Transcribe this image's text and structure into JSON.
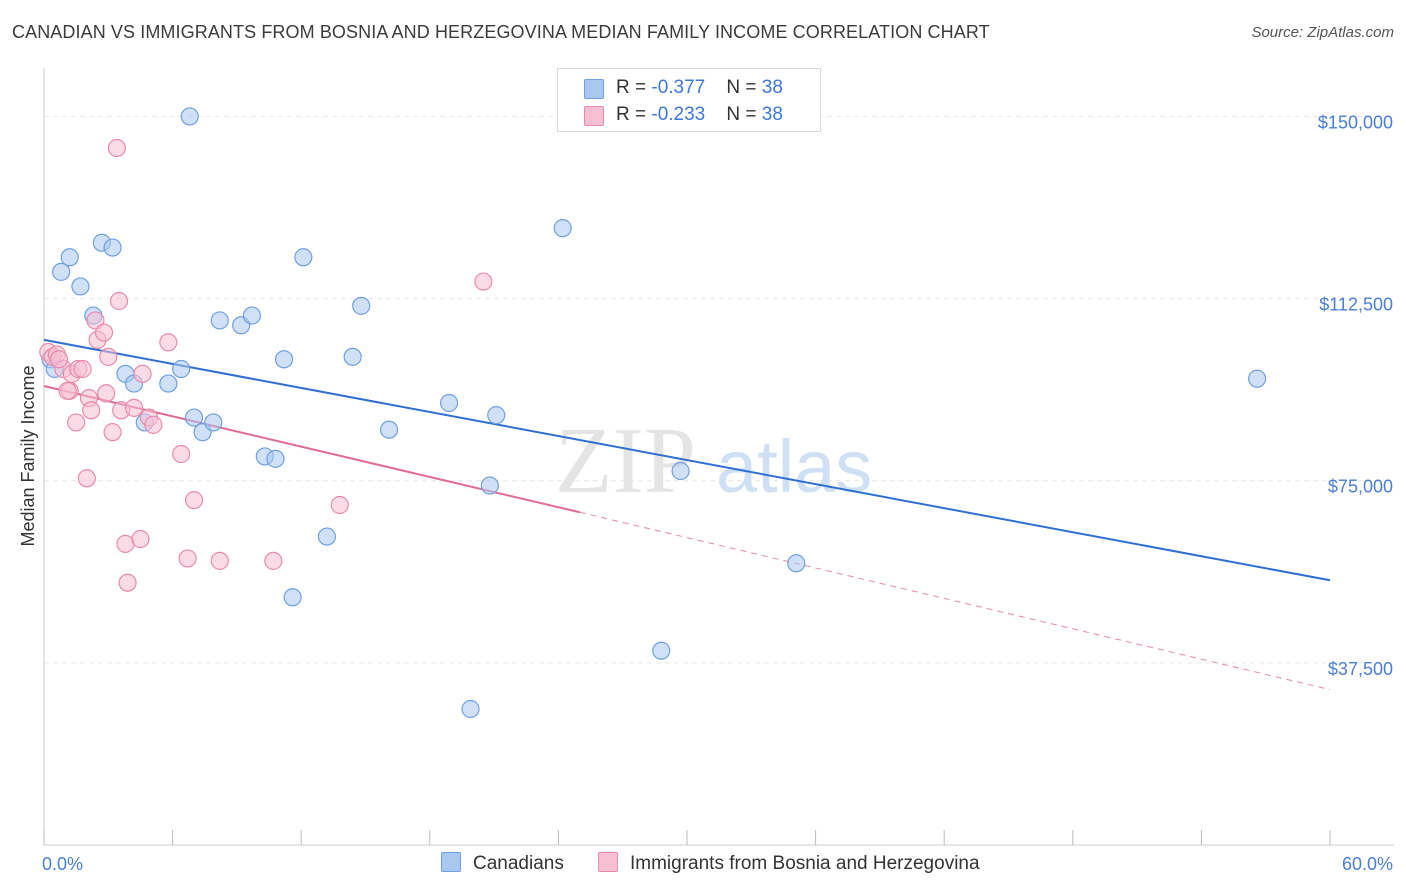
{
  "title": "CANADIAN VS IMMIGRANTS FROM BOSNIA AND HERZEGOVINA MEDIAN FAMILY INCOME CORRELATION CHART",
  "source": "Source: ZipAtlas.com",
  "watermark": {
    "zip": "ZIP",
    "atlas": "atlas"
  },
  "legend": [
    {
      "r_label": "R = ",
      "r_value": "-0.377",
      "n_label": "N = ",
      "n_value": "38",
      "color": "#a9c8f0",
      "border": "#6fa0e0"
    },
    {
      "r_label": "R = ",
      "r_value": "-0.233",
      "n_label": "N = ",
      "n_value": "38",
      "color": "#f7bfd2",
      "border": "#e98aab"
    }
  ],
  "chart_data": {
    "type": "scatter",
    "title": "CANADIAN VS IMMIGRANTS FROM BOSNIA AND HERZEGOVINA MEDIAN FAMILY INCOME CORRELATION CHART",
    "xlabel": "",
    "ylabel": "Median Family Income",
    "xlim": [
      0,
      60
    ],
    "ylim": [
      0,
      157500
    ],
    "x_tick_labels": [
      "0.0%",
      "60.0%"
    ],
    "y_ticks": [
      37500,
      75000,
      112500,
      150000
    ],
    "y_tick_labels": [
      "$37,500",
      "$75,000",
      "$112,500",
      "$150,000"
    ],
    "grid": true,
    "series": [
      {
        "name": "Canadians",
        "color": "#6fa0e0",
        "fill": "#a9c8f0",
        "line_color": "#2f6fd1",
        "trend": {
          "x0": 0.0,
          "y0": 104000,
          "x1": 60.0,
          "y1": 54500,
          "dashed_to": null
        },
        "points": [
          [
            0.3,
            100000
          ],
          [
            0.5,
            98000
          ],
          [
            0.8,
            118000
          ],
          [
            1.2,
            121000
          ],
          [
            1.7,
            115000
          ],
          [
            2.3,
            109000
          ],
          [
            2.7,
            124000
          ],
          [
            3.2,
            123000
          ],
          [
            3.8,
            97000
          ],
          [
            4.2,
            95000
          ],
          [
            4.7,
            87000
          ],
          [
            5.8,
            95000
          ],
          [
            6.4,
            98000
          ],
          [
            6.8,
            150000
          ],
          [
            7.0,
            88000
          ],
          [
            7.4,
            85000
          ],
          [
            7.9,
            87000
          ],
          [
            8.2,
            108000
          ],
          [
            9.2,
            107000
          ],
          [
            9.7,
            109000
          ],
          [
            10.3,
            80000
          ],
          [
            10.8,
            79500
          ],
          [
            11.2,
            100000
          ],
          [
            11.6,
            51000
          ],
          [
            12.1,
            121000
          ],
          [
            13.2,
            63500
          ],
          [
            14.4,
            100500
          ],
          [
            14.8,
            111000
          ],
          [
            16.1,
            85500
          ],
          [
            18.9,
            91000
          ],
          [
            19.9,
            28000
          ],
          [
            20.8,
            74000
          ],
          [
            21.1,
            88500
          ],
          [
            24.2,
            127000
          ],
          [
            28.8,
            40000
          ],
          [
            29.7,
            77000
          ],
          [
            35.1,
            58000
          ],
          [
            56.6,
            96000
          ]
        ]
      },
      {
        "name": "Immigrants from Bosnia and Herzegovina",
        "color": "#e98aab",
        "fill": "#f7bfd2",
        "line_color": "#e06b95",
        "trend": {
          "x0": 0.0,
          "y0": 94500,
          "x1": 25.0,
          "y1": 68500,
          "dashed_to": {
            "x": 60.0,
            "y": 32000
          }
        },
        "points": [
          [
            0.2,
            101500
          ],
          [
            0.4,
            100500
          ],
          [
            0.6,
            101000
          ],
          [
            0.9,
            98000
          ],
          [
            1.2,
            93500
          ],
          [
            1.3,
            97000
          ],
          [
            1.5,
            87000
          ],
          [
            1.6,
            98000
          ],
          [
            1.8,
            98000
          ],
          [
            2.0,
            75500
          ],
          [
            2.1,
            92000
          ],
          [
            2.2,
            89500
          ],
          [
            2.4,
            108000
          ],
          [
            2.5,
            104000
          ],
          [
            2.8,
            105500
          ],
          [
            3.0,
            100500
          ],
          [
            3.2,
            85000
          ],
          [
            3.4,
            143500
          ],
          [
            3.5,
            112000
          ],
          [
            3.6,
            89500
          ],
          [
            3.8,
            62000
          ],
          [
            3.9,
            54000
          ],
          [
            4.2,
            90000
          ],
          [
            4.5,
            63000
          ],
          [
            4.6,
            97000
          ],
          [
            4.9,
            88000
          ],
          [
            5.1,
            86500
          ],
          [
            5.8,
            103500
          ],
          [
            6.4,
            80500
          ],
          [
            6.7,
            59000
          ],
          [
            7.0,
            71000
          ],
          [
            8.2,
            58500
          ],
          [
            10.7,
            58500
          ],
          [
            13.8,
            70000
          ],
          [
            20.5,
            116000
          ],
          [
            0.7,
            100000
          ],
          [
            1.1,
            93500
          ],
          [
            2.9,
            93000
          ]
        ]
      }
    ]
  }
}
